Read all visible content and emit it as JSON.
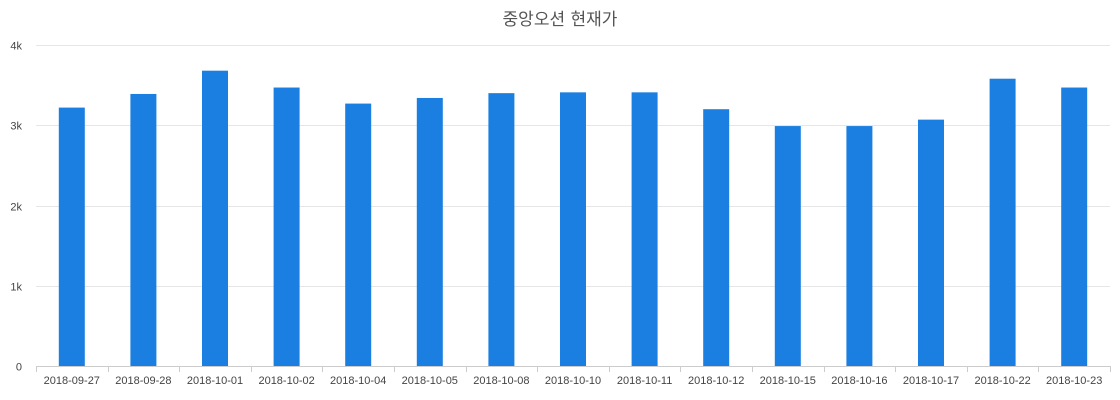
{
  "chart_data": {
    "type": "bar",
    "title": "중앙오션 현재가",
    "xlabel": "",
    "ylabel": "",
    "categories": [
      "2018-09-27",
      "2018-09-28",
      "2018-10-01",
      "2018-10-02",
      "2018-10-04",
      "2018-10-05",
      "2018-10-08",
      "2018-10-10",
      "2018-10-11",
      "2018-10-12",
      "2018-10-15",
      "2018-10-16",
      "2018-10-17",
      "2018-10-22",
      "2018-10-23"
    ],
    "values": [
      3220,
      3390,
      3680,
      3470,
      3270,
      3340,
      3400,
      3410,
      3410,
      3200,
      2990,
      2990,
      3070,
      3580,
      3470
    ],
    "ylim": [
      0,
      4000
    ],
    "yticks": [
      0,
      1000,
      2000,
      3000,
      4000
    ],
    "ytick_labels": [
      "0",
      "1k",
      "2k",
      "3k",
      "4k"
    ],
    "grid": true,
    "legend": "none",
    "bar_color": "#1a7fe0",
    "grid_color": "#e6e6e6",
    "axis_color": "#cccccc"
  }
}
